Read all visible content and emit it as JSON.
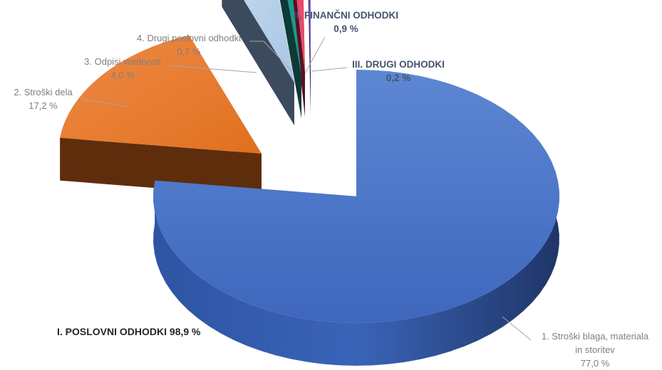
{
  "chart_data": {
    "type": "pie",
    "style": "3d-exploded",
    "slices": [
      {
        "name": "1. Stroški blaga, materiala in storitev",
        "value": 77.0,
        "value_label": "77,0 %",
        "color": "#4472c4"
      },
      {
        "name": "2. Stroški dela",
        "value": 17.2,
        "value_label": "17,2 %",
        "color": "#ed7d31"
      },
      {
        "name": "3. Odpisi vrednosti",
        "value": 4.0,
        "value_label": "4,0 %",
        "color": "#b4cfe8"
      },
      {
        "name": "4. Drugi poslovni odhodki",
        "value": 0.7,
        "value_label": "0,7 %",
        "color": "#1d9a8a"
      },
      {
        "name": "II. FINANČNI ODHODKI",
        "value": 0.9,
        "value_label": "0,9 %",
        "color": "#e84a6e"
      },
      {
        "name": "III. DRUGI ODHODKI",
        "value": 0.2,
        "value_label": "0,2 %",
        "color": "#7b5cd6"
      }
    ],
    "group_annotation": "I. POSLOVNI ODHODKI 98,9 %"
  },
  "labels": {
    "s1_line1": "1. Stroški blaga, materiala",
    "s1_line2": "in storitev",
    "s1_value": "77,0 %",
    "s2_name": "2. Stroški dela",
    "s2_value": "17,2 %",
    "s3_name": "3. Odpisi vrednosti",
    "s3_value": "4,0 %",
    "s4_name": "4. Drugi poslovni odhodki",
    "s4_value": "0,7 %",
    "fin_name": "II. FINANČNI ODHODKI",
    "fin_value": "0,9 %",
    "drugi_name": "III. DRUGI ODHODKI",
    "drugi_value": "0,2 %",
    "group": "I. POSLOVNI ODHODKI 98,9 %"
  }
}
